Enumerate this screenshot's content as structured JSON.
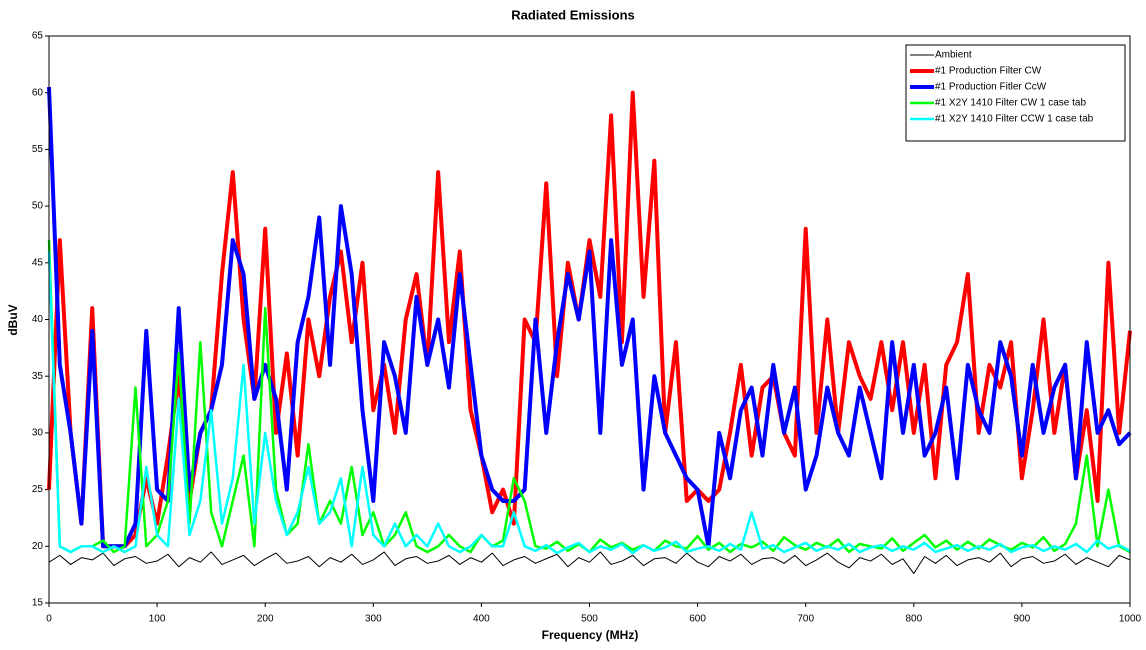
{
  "chart_data": {
    "type": "line",
    "title": "Radiated Emissions",
    "x_label": "Frequency (MHz)",
    "y_label": "dBuV",
    "x": [
      0,
      10,
      20,
      30,
      40,
      50,
      60,
      70,
      80,
      90,
      100,
      110,
      120,
      130,
      140,
      150,
      160,
      170,
      180,
      190,
      200,
      210,
      220,
      230,
      240,
      250,
      260,
      270,
      280,
      290,
      300,
      310,
      320,
      330,
      340,
      350,
      360,
      370,
      380,
      390,
      400,
      410,
      420,
      430,
      440,
      450,
      460,
      470,
      480,
      490,
      500,
      510,
      520,
      530,
      540,
      550,
      560,
      570,
      580,
      590,
      600,
      610,
      620,
      630,
      640,
      650,
      660,
      670,
      680,
      690,
      700,
      710,
      720,
      730,
      740,
      750,
      760,
      770,
      780,
      790,
      800,
      810,
      820,
      830,
      840,
      850,
      860,
      870,
      880,
      890,
      900,
      910,
      920,
      930,
      940,
      950,
      960,
      970,
      980,
      990,
      1000
    ],
    "series": [
      {
        "name": "Ambient",
        "color": "#000000",
        "width": 1,
        "values": [
          18.6,
          19.2,
          18.4,
          19.0,
          18.8,
          19.4,
          18.3,
          18.9,
          19.1,
          18.5,
          18.7,
          19.3,
          18.2,
          19.0,
          18.6,
          19.5,
          18.4,
          18.8,
          19.2,
          18.3,
          18.9,
          19.4,
          18.5,
          18.7,
          19.1,
          18.2,
          19.0,
          18.6,
          19.3,
          18.4,
          18.8,
          19.5,
          18.3,
          18.9,
          19.1,
          18.5,
          18.7,
          19.2,
          18.4,
          19.0,
          18.6,
          19.4,
          18.3,
          18.8,
          19.1,
          18.5,
          18.9,
          19.3,
          18.2,
          19.0,
          18.6,
          19.5,
          18.4,
          18.7,
          19.2,
          18.3,
          18.9,
          19.0,
          18.5,
          19.4,
          18.6,
          18.2,
          19.1,
          18.7,
          19.3,
          18.4,
          18.9,
          19.0,
          18.5,
          19.2,
          18.3,
          18.8,
          19.4,
          18.6,
          18.1,
          19.0,
          18.7,
          19.3,
          18.4,
          18.9,
          17.6,
          19.1,
          18.5,
          19.2,
          18.3,
          18.8,
          19.0,
          18.6,
          19.4,
          18.2,
          18.9,
          19.1,
          18.5,
          18.7,
          19.3,
          18.4,
          19.0,
          18.6,
          18.2,
          19.2,
          18.8
        ]
      },
      {
        "name": "#1 Production Filter CW",
        "color": "#ff0000",
        "width": 4,
        "values": [
          25,
          47,
          30,
          22,
          41,
          20,
          20,
          20,
          21,
          26,
          22,
          28,
          35,
          24,
          30,
          32,
          44,
          53,
          40,
          33,
          48,
          30,
          37,
          28,
          40,
          35,
          42,
          46,
          38,
          45,
          32,
          36,
          30,
          40,
          44,
          36,
          53,
          38,
          46,
          32,
          28,
          23,
          25,
          22,
          40,
          38,
          52,
          35,
          45,
          40,
          47,
          42,
          58,
          38,
          60,
          42,
          54,
          30,
          38,
          24,
          25,
          24,
          25,
          30,
          36,
          28,
          34,
          35,
          30,
          28,
          48,
          30,
          40,
          30,
          38,
          35,
          33,
          38,
          32,
          38,
          30,
          36,
          26,
          36,
          38,
          44,
          30,
          36,
          34,
          38,
          26,
          32,
          40,
          30,
          36,
          26,
          32,
          24,
          45,
          30,
          39
        ]
      },
      {
        "name": "#1 Production Fitler CcW",
        "color": "#0000ff",
        "width": 4,
        "values": [
          60.5,
          36,
          30,
          22,
          39,
          20,
          20,
          20,
          22,
          39,
          25,
          24,
          41,
          25,
          30,
          32,
          36,
          47,
          44,
          33,
          36,
          33,
          25,
          38,
          42,
          49,
          36,
          50,
          44,
          32,
          24,
          38,
          35,
          30,
          42,
          36,
          40,
          34,
          44,
          36,
          28,
          25,
          24,
          24,
          25,
          40,
          30,
          38,
          44,
          40,
          46,
          30,
          47,
          36,
          40,
          25,
          35,
          30,
          28,
          26,
          25,
          20,
          30,
          26,
          32,
          34,
          28,
          36,
          30,
          34,
          25,
          28,
          34,
          30,
          28,
          34,
          30,
          26,
          38,
          30,
          36,
          28,
          30,
          34,
          26,
          36,
          32,
          30,
          38,
          35,
          28,
          36,
          30,
          34,
          36,
          26,
          38,
          30,
          32,
          29,
          30
        ]
      },
      {
        "name": "#1 X2Y 1410 Filter CW 1 case tab",
        "color": "#00ff00",
        "width": 2.5,
        "values": [
          47,
          20,
          19.5,
          20,
          20,
          20.5,
          19.5,
          20,
          34,
          20,
          21,
          24,
          37,
          22,
          38,
          23,
          20,
          24,
          28,
          20,
          41,
          25,
          21,
          22,
          29,
          22,
          24,
          22,
          27,
          21,
          23,
          20,
          21,
          23,
          20,
          19.5,
          20,
          21,
          20,
          19.5,
          21,
          20,
          20.5,
          26,
          24,
          20,
          19.8,
          20.4,
          19.6,
          20.2,
          19.5,
          20.6,
          19.9,
          20.3,
          19.7,
          20.1,
          19.6,
          20.5,
          20.0,
          19.8,
          20.9,
          19.7,
          20.3,
          19.5,
          20.2,
          19.9,
          20.4,
          19.6,
          20.8,
          20.1,
          19.7,
          20.3,
          19.9,
          20.6,
          19.5,
          20.2,
          20.0,
          19.8,
          20.7,
          19.6,
          20.3,
          21.0,
          19.9,
          20.5,
          19.7,
          20.4,
          19.8,
          20.6,
          20.1,
          19.7,
          20.3,
          19.9,
          20.8,
          19.6,
          20.2,
          22,
          28,
          20,
          25,
          20,
          19.5
        ]
      },
      {
        "name": "#1 X2Y 1410 Filter CCW 1 case tab",
        "color": "#00ffff",
        "width": 2.5,
        "values": [
          46,
          20,
          19.5,
          20,
          20,
          19.5,
          20,
          19.5,
          20,
          27,
          21,
          20,
          33,
          21,
          24,
          32,
          22,
          26,
          36,
          22,
          30,
          24,
          21,
          23,
          27,
          22,
          23,
          26,
          20,
          27,
          21,
          20,
          22,
          20,
          21,
          20,
          22,
          20,
          19.5,
          20,
          21,
          20,
          20,
          23,
          20,
          19.6,
          20.1,
          19.4,
          19.9,
          20.3,
          19.5,
          20.0,
          19.7,
          20.2,
          19.4,
          20.1,
          19.6,
          19.9,
          20.4,
          19.5,
          19.8,
          20.0,
          19.6,
          20.2,
          19.7,
          23,
          19.8,
          20.1,
          19.5,
          19.9,
          20.3,
          19.6,
          20.0,
          19.7,
          20.2,
          19.5,
          19.9,
          20.1,
          19.6,
          20.0,
          19.7,
          20.3,
          19.5,
          19.8,
          20.1,
          19.6,
          20.0,
          19.7,
          20.2,
          19.5,
          19.9,
          20.1,
          19.6,
          20.0,
          19.7,
          20.2,
          19.5,
          20.5,
          19.8,
          20.1,
          19.6
        ]
      }
    ],
    "xlim": [
      0,
      1000
    ],
    "xticks": [
      0,
      100,
      200,
      300,
      400,
      500,
      600,
      700,
      800,
      900,
      1000
    ],
    "ylim": [
      15,
      65
    ],
    "yticks": [
      15,
      20,
      25,
      30,
      35,
      40,
      45,
      50,
      55,
      60,
      65
    ],
    "grid": false,
    "legend": "upper right"
  }
}
